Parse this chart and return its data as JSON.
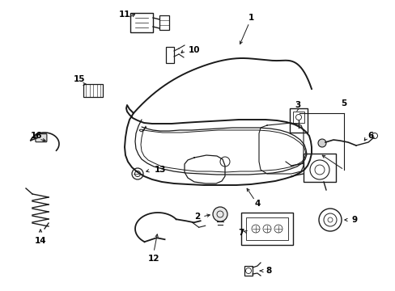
{
  "background_color": "#ffffff",
  "line_color": "#1a1a1a",
  "text_color": "#000000",
  "fig_width": 4.89,
  "fig_height": 3.6,
  "dpi": 100
}
